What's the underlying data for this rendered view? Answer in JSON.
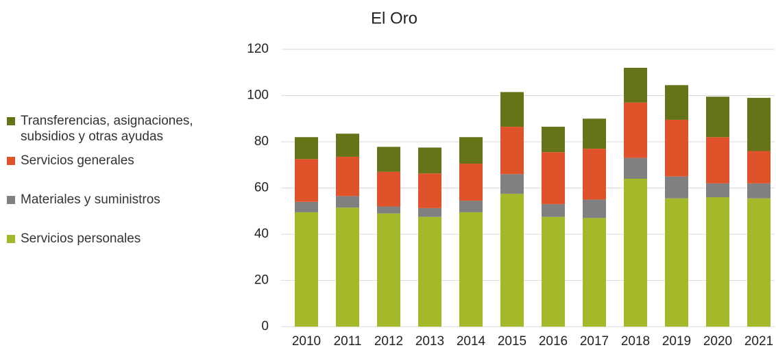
{
  "chart_data": {
    "type": "stacked_bar",
    "title": "El Oro",
    "categories": [
      "2010",
      "2011",
      "2012",
      "2013",
      "2014",
      "2015",
      "2016",
      "2017",
      "2018",
      "2019",
      "2020",
      "2021"
    ],
    "series": [
      {
        "name": "Servicios personales",
        "color": "#a5b82a",
        "values": [
          49.5,
          51.5,
          49,
          47.5,
          49.5,
          57.5,
          47.5,
          47,
          64,
          55.5,
          56,
          55.5
        ]
      },
      {
        "name": "Materiales y suministros",
        "color": "#808080",
        "values": [
          4.5,
          5,
          3,
          3.8,
          5,
          8.5,
          5.5,
          8,
          9,
          9.5,
          6,
          6.5
        ]
      },
      {
        "name": "Servicios generales",
        "color": "#e0522a",
        "values": [
          18.5,
          17,
          15,
          15,
          16,
          20.5,
          22.5,
          22,
          24,
          24.5,
          20,
          14
        ]
      },
      {
        "name": "Transferencias, asignaciones, subsidios y otras ayudas",
        "color": "#667318",
        "values": [
          9.5,
          10,
          10.8,
          11.2,
          11.5,
          15,
          11,
          13,
          15,
          15,
          17.5,
          23
        ]
      }
    ],
    "ylim": [
      0,
      120
    ],
    "yticks": [
      0,
      20,
      40,
      60,
      80,
      100,
      120
    ],
    "grid": true
  }
}
